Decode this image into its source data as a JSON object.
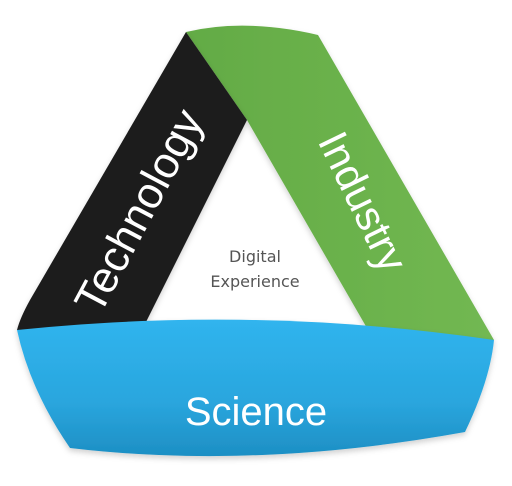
{
  "diagram": {
    "segments": {
      "technology": {
        "label": "Technology",
        "color": "#1a1a1a"
      },
      "industry": {
        "label": "Industry",
        "color": "#6ab04c"
      },
      "science": {
        "label": "Science",
        "color": "#2aaae2"
      }
    },
    "center": {
      "line1": "Digital",
      "line2": "Experience"
    }
  }
}
